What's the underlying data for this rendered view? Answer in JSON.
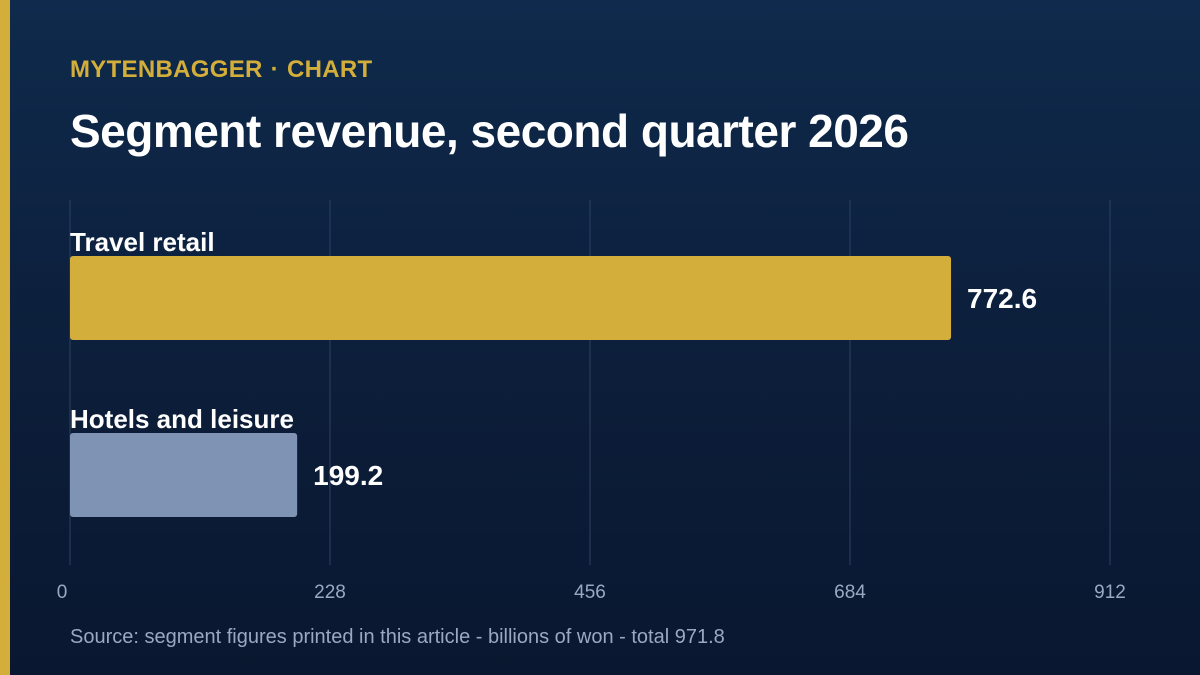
{
  "header": {
    "brand": "MYTENBAGGER",
    "separator": "·",
    "section": "CHART"
  },
  "footer": {
    "source": "Source: segment figures printed in this article - billions of won - total 971.8"
  },
  "colors": {
    "accent": "#d4ae3a",
    "secondary_bar": "#7f93b4",
    "background": "#0c1e3a",
    "grid": "#2c4263"
  },
  "chart_data": {
    "type": "bar",
    "orientation": "horizontal",
    "title": "Segment revenue, second quarter 2026",
    "categories": [
      "Travel retail",
      "Hotels and leisure"
    ],
    "values": [
      772.6,
      199.2
    ],
    "value_labels": [
      "772.6",
      "199.2"
    ],
    "xlim": [
      0,
      912
    ],
    "xticks": [
      0,
      228,
      456,
      684,
      912
    ],
    "xtick_labels": [
      "0",
      "228",
      "456",
      "684",
      "912"
    ],
    "grid": true,
    "bar_colors": [
      "#d4ae3a",
      "#7f93b4"
    ]
  }
}
